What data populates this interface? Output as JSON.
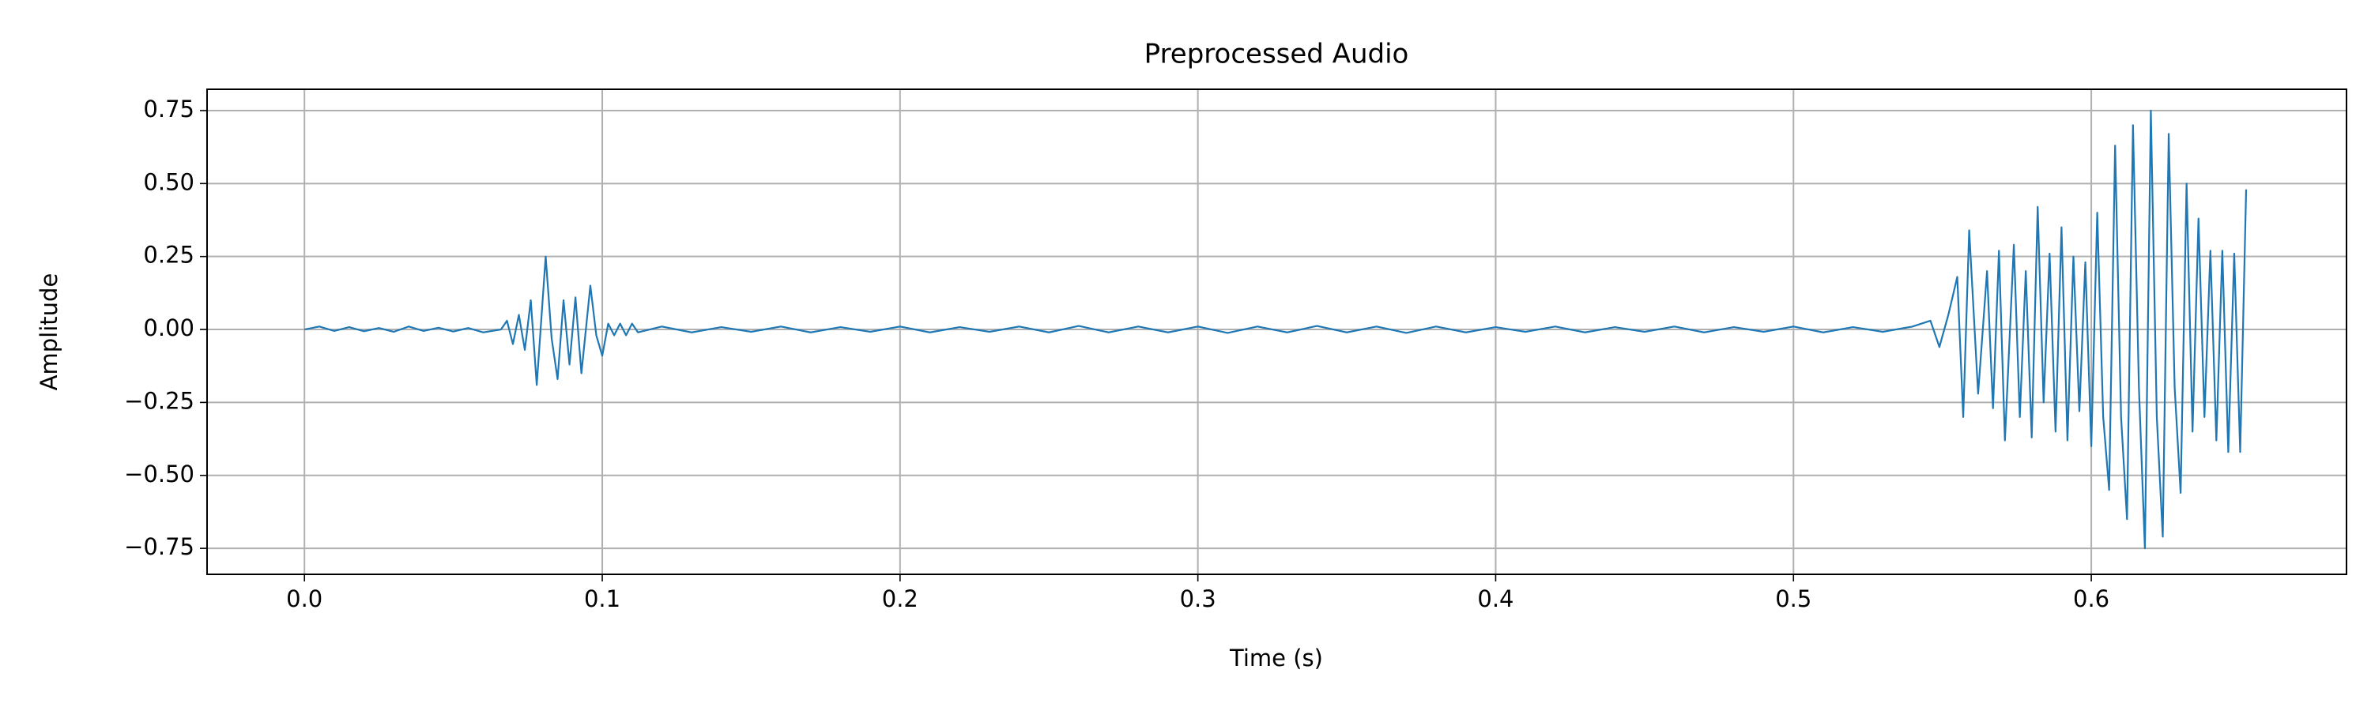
{
  "chart_data": {
    "type": "line",
    "title": "Preprocessed Audio",
    "x_label": "Time (s)",
    "y_label": "Amplitude",
    "x": [
      0,
      0.005,
      0.01,
      0.015,
      0.02,
      0.025,
      0.03,
      0.035,
      0.04,
      0.045,
      0.05,
      0.055,
      0.06,
      0.066,
      0.068,
      0.07,
      0.072,
      0.074,
      0.076,
      0.078,
      0.081,
      0.083,
      0.085,
      0.087,
      0.089,
      0.091,
      0.093,
      0.096,
      0.098,
      0.1,
      0.102,
      0.104,
      0.106,
      0.108,
      0.11,
      0.112,
      0.12,
      0.13,
      0.14,
      0.15,
      0.16,
      0.17,
      0.18,
      0.19,
      0.2,
      0.21,
      0.22,
      0.23,
      0.24,
      0.25,
      0.26,
      0.27,
      0.28,
      0.29,
      0.3,
      0.31,
      0.32,
      0.33,
      0.34,
      0.35,
      0.36,
      0.37,
      0.38,
      0.39,
      0.4,
      0.41,
      0.42,
      0.43,
      0.44,
      0.45,
      0.46,
      0.47,
      0.48,
      0.49,
      0.5,
      0.51,
      0.52,
      0.53,
      0.54,
      0.546,
      0.549,
      0.552,
      0.555,
      0.557,
      0.559,
      0.562,
      0.565,
      0.567,
      0.569,
      0.571,
      0.574,
      0.576,
      0.578,
      0.58,
      0.582,
      0.584,
      0.586,
      0.588,
      0.59,
      0.592,
      0.594,
      0.596,
      0.598,
      0.6,
      0.602,
      0.604,
      0.606,
      0.608,
      0.61,
      0.612,
      0.614,
      0.616,
      0.618,
      0.62,
      0.622,
      0.624,
      0.626,
      0.628,
      0.63,
      0.632,
      0.634,
      0.636,
      0.638,
      0.64,
      0.642,
      0.644,
      0.646,
      0.648,
      0.65,
      0.652
    ],
    "series": [
      {
        "color": "#1f77b4",
        "values": [
          0,
          0.01,
          -0.005,
          0.008,
          -0.006,
          0.005,
          -0.008,
          0.01,
          -0.005,
          0.006,
          -0.007,
          0.005,
          -0.01,
          0.0,
          0.03,
          -0.05,
          0.05,
          -0.07,
          0.1,
          -0.19,
          0.25,
          -0.03,
          -0.17,
          0.1,
          -0.12,
          0.11,
          -0.15,
          0.15,
          -0.02,
          -0.09,
          0.02,
          -0.02,
          0.02,
          -0.02,
          0.02,
          -0.01,
          0.01,
          -0.01,
          0.008,
          -0.008,
          0.01,
          -0.01,
          0.008,
          -0.008,
          0.01,
          -0.01,
          0.008,
          -0.008,
          0.01,
          -0.01,
          0.012,
          -0.01,
          0.01,
          -0.01,
          0.01,
          -0.012,
          0.01,
          -0.01,
          0.012,
          -0.01,
          0.01,
          -0.012,
          0.01,
          -0.01,
          0.008,
          -0.008,
          0.01,
          -0.01,
          0.008,
          -0.008,
          0.01,
          -0.01,
          0.008,
          -0.008,
          0.01,
          -0.01,
          0.008,
          -0.008,
          0.01,
          0.03,
          -0.06,
          0.05,
          0.18,
          -0.3,
          0.34,
          -0.22,
          0.2,
          -0.27,
          0.27,
          -0.38,
          0.29,
          -0.3,
          0.2,
          -0.37,
          0.42,
          -0.25,
          0.26,
          -0.35,
          0.35,
          -0.38,
          0.25,
          -0.28,
          0.23,
          -0.4,
          0.4,
          -0.3,
          -0.55,
          0.63,
          -0.3,
          -0.65,
          0.7,
          -0.2,
          -0.75,
          0.75,
          -0.3,
          -0.71,
          0.67,
          -0.2,
          -0.56,
          0.5,
          -0.35,
          0.38,
          -0.3,
          0.27,
          -0.38,
          0.27,
          -0.42,
          0.26,
          -0.42,
          0.48
        ]
      }
    ],
    "xlim": [
      -0.0327,
      0.6857
    ],
    "ylim": [
      -0.839,
      0.823
    ],
    "xticks": [
      {
        "value": 0,
        "label": "0.0"
      },
      0.1,
      0.2,
      0.3,
      0.4,
      0.5,
      0.6
    ],
    "yticks": [
      {
        "value": -0.75,
        "label": "−0.75"
      },
      {
        "value": -0.5,
        "label": "−0.50"
      },
      {
        "value": -0.25,
        "label": "−0.25"
      },
      {
        "value": 0,
        "label": "0.00"
      },
      0.25,
      {
        "value": 0.5,
        "label": "0.50"
      },
      0.75
    ],
    "grid": true
  }
}
